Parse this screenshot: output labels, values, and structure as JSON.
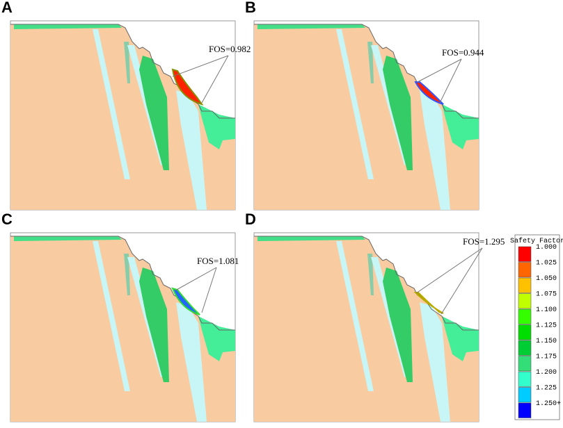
{
  "panels": [
    {
      "label": "A",
      "fos": "FOS=0.982"
    },
    {
      "label": "B",
      "fos": "FOS=0.944"
    },
    {
      "label": "C",
      "fos": "FOS=1.081"
    },
    {
      "label": "D",
      "fos": "FOS=1.295"
    }
  ],
  "legend": {
    "title": "Safety Factor",
    "items": [
      {
        "label": "1.000",
        "color": "#ff0000"
      },
      {
        "label": "1.025",
        "color": "#ff6600"
      },
      {
        "label": "1.050",
        "color": "#ffc000"
      },
      {
        "label": "1.075",
        "color": "#c0ff00"
      },
      {
        "label": "1.100",
        "color": "#33ff00"
      },
      {
        "label": "1.125",
        "color": "#00dd00"
      },
      {
        "label": "1.150",
        "color": "#00cc33"
      },
      {
        "label": "1.175",
        "color": "#33dd77"
      },
      {
        "label": "1.200",
        "color": "#33ffcc"
      },
      {
        "label": "1.225",
        "color": "#00ccff"
      },
      {
        "label": "1.250+",
        "color": "#0000ff"
      }
    ]
  }
}
